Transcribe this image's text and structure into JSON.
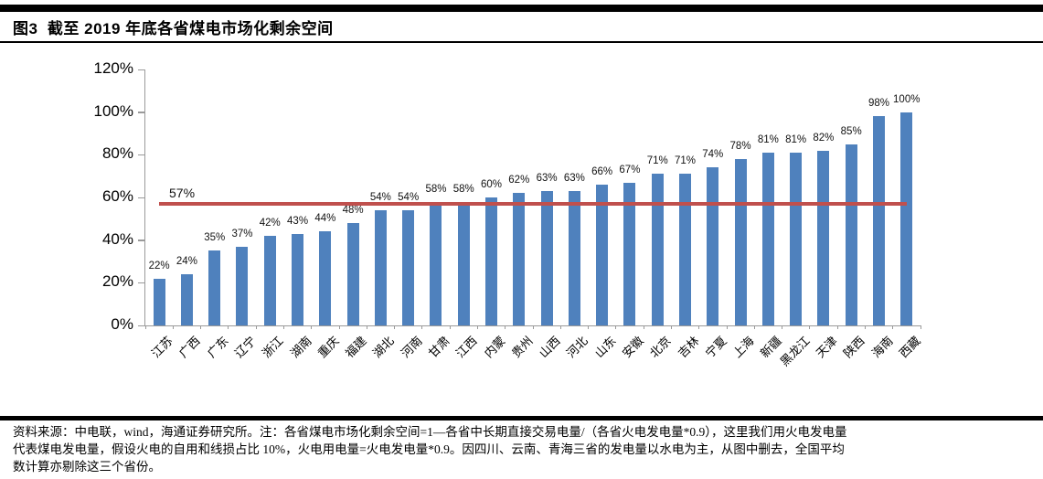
{
  "page": {
    "title_label": "图3  截至 2019 年底各省煤电市场化剩余空间",
    "source_note_lines": [
      "资料来源：中电联，wind，海通证券研究所。注：各省煤电市场化剩余空间=1—各省中长期直接交易电量/（各省火电发电量*0.9），这里我们用火电发电量",
      "代表煤电发电量，假设火电的自用和线损占比 10%，火电用电量=火电发电量*0.9。因四川、云南、青海三省的发电量以水电为主，从图中删去，全国平均",
      "数计算亦剔除这三个省份。"
    ]
  },
  "chart_data": {
    "type": "bar",
    "title": "截至 2019 年底各省煤电市场化剩余空间",
    "categories": [
      "江苏",
      "广西",
      "广东",
      "辽宁",
      "浙江",
      "湖南",
      "重庆",
      "福建",
      "湖北",
      "河南",
      "甘肃",
      "江西",
      "内蒙",
      "贵州",
      "山西",
      "河北",
      "山东",
      "安徽",
      "北京",
      "吉林",
      "宁夏",
      "上海",
      "新疆",
      "黑龙江",
      "天津",
      "陕西",
      "海南",
      "西藏"
    ],
    "values": [
      22,
      24,
      35,
      37,
      42,
      43,
      44,
      48,
      54,
      54,
      58,
      58,
      60,
      62,
      63,
      63,
      66,
      67,
      71,
      71,
      74,
      78,
      81,
      81,
      82,
      85,
      98,
      100
    ],
    "value_labels": [
      "22%",
      "24%",
      "35%",
      "37%",
      "42%",
      "43%",
      "44%",
      "48%",
      "54%",
      "54%",
      "58%",
      "58%",
      "60%",
      "62%",
      "63%",
      "63%",
      "66%",
      "67%",
      "71%",
      "71%",
      "74%",
      "78%",
      "81%",
      "81%",
      "82%",
      "85%",
      "98%",
      "100%"
    ],
    "unit": "%",
    "xlabel": "",
    "ylabel": "",
    "ylim": [
      0,
      120
    ],
    "y_ticks": [
      0,
      20,
      40,
      60,
      80,
      100,
      120
    ],
    "y_tick_labels": [
      "0%",
      "20%",
      "40%",
      "60%",
      "80%",
      "100%",
      "120%"
    ],
    "grid": false,
    "legend": "none",
    "bar_color": "#4F81BD",
    "axis_color": "#9a9a9a",
    "reference_line": {
      "value": 57,
      "label": "57%",
      "color": "#C0504D"
    }
  }
}
